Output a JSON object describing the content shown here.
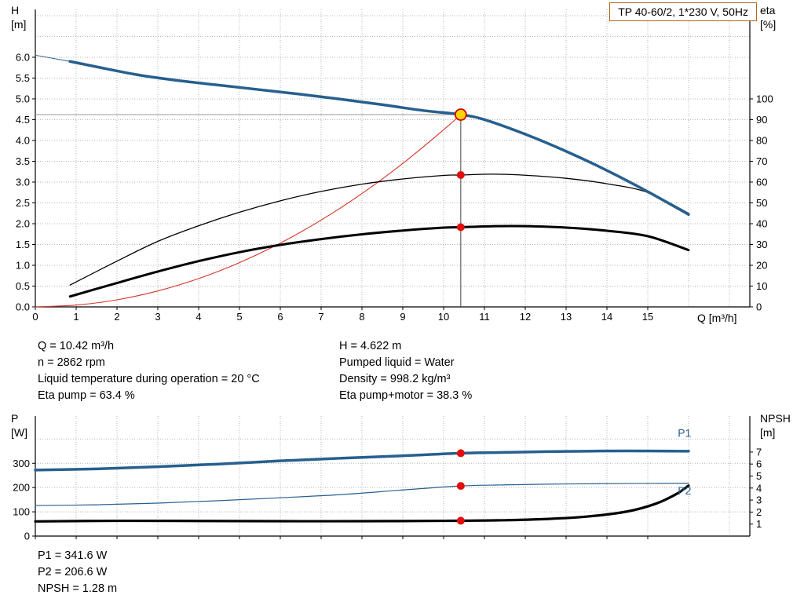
{
  "title_box": {
    "label": "TP 40-60/2, 1*230 V, 50Hz"
  },
  "colors": {
    "grid": "#b5b5b5",
    "axis": "#000000",
    "curve_blue": "#275f8f",
    "curve_black": "#000000",
    "system_red": "#d53328",
    "dot_red": "#e40d0d",
    "op_fill": "#ffd400",
    "op_stroke": "#d50000",
    "title_border": "#b4641e"
  },
  "info_block": {
    "left": [
      "Q = 10.42 m³/h",
      "n = 2862 rpm",
      "Liquid temperature during operation = 20 °C",
      "Eta pump = 63.4 %"
    ],
    "right": [
      "H = 4.622 m",
      "Pumped liquid = Water",
      "Density = 998.2 kg/m³",
      "Eta pump+motor = 38.3 %"
    ]
  },
  "result_block": {
    "p1": "P1 = 341.6 W",
    "p2": "P2 = 206.6 W",
    "npsh": "NPSH = 1.28 m"
  },
  "chart_data": [
    {
      "type": "line",
      "title": "TP 40-60/2, 1*230 V, 50Hz",
      "x_axis": {
        "label": "Q [m³/h]",
        "min": 0,
        "max": 17.5,
        "grid_step": 1,
        "show_labels": true,
        "ticks": [
          0,
          1,
          2,
          3,
          4,
          5,
          6,
          7,
          8,
          9,
          10,
          11,
          12,
          13,
          14,
          15
        ]
      },
      "y_left": {
        "name": "H",
        "unit": "[m]",
        "min": 0,
        "max": 7.15,
        "grid_step": 0.5,
        "decimals": 1,
        "ticks": [
          0,
          0.5,
          1,
          1.5,
          2,
          2.5,
          3,
          3.5,
          4,
          4.5,
          5,
          5.5,
          6
        ]
      },
      "y_right": {
        "name": "eta",
        "unit": "[%]",
        "min": 0,
        "max": 143,
        "ticks": [
          0,
          10,
          20,
          30,
          40,
          50,
          60,
          70,
          80,
          90,
          100
        ]
      },
      "series": [
        {
          "name": "pump-curve-lead",
          "axis": "left",
          "color": "#275f8f",
          "width": 1,
          "points": [
            [
              0,
              6.05
            ],
            [
              0.85,
              5.9
            ]
          ]
        },
        {
          "name": "system-curve",
          "axis": "left",
          "color": "#d53328",
          "width": 1.1,
          "points": [
            [
              0,
              0
            ],
            [
              1,
              0.043
            ],
            [
              2,
              0.17
            ],
            [
              3,
              0.383
            ],
            [
              4,
              0.681
            ],
            [
              5,
              1.064
            ],
            [
              6,
              1.532
            ],
            [
              7,
              2.086
            ],
            [
              8,
              2.724
            ],
            [
              9,
              3.448
            ],
            [
              10,
              4.257
            ],
            [
              10.42,
              4.622
            ]
          ]
        },
        {
          "name": "eta-pump-curve",
          "axis": "right",
          "color": "#000000",
          "width": 1.3,
          "points": [
            [
              0.85,
              10.5
            ],
            [
              2,
              22
            ],
            [
              3,
              31.5
            ],
            [
              4,
              39
            ],
            [
              5,
              45.5
            ],
            [
              6,
              51
            ],
            [
              7,
              55.5
            ],
            [
              8,
              59
            ],
            [
              9,
              61.5
            ],
            [
              10,
              63.2
            ],
            [
              10.42,
              63.4
            ],
            [
              11.2,
              63.8
            ],
            [
              12,
              63.3
            ],
            [
              13,
              61.8
            ],
            [
              14,
              59.2
            ],
            [
              15,
              55
            ],
            [
              16,
              45
            ]
          ]
        },
        {
          "name": "eta-pump-motor-curve",
          "axis": "right",
          "color": "#000000",
          "width": 3,
          "points": [
            [
              0.85,
              5
            ],
            [
              2,
              11.5
            ],
            [
              3,
              17
            ],
            [
              4,
              22
            ],
            [
              5,
              26.3
            ],
            [
              6,
              29.8
            ],
            [
              7,
              32.6
            ],
            [
              8,
              34.9
            ],
            [
              9,
              36.7
            ],
            [
              10,
              38.1
            ],
            [
              10.42,
              38.3
            ],
            [
              11.3,
              38.8
            ],
            [
              12,
              38.8
            ],
            [
              13,
              38.1
            ],
            [
              14,
              36.6
            ],
            [
              15,
              34
            ],
            [
              16,
              27.3
            ]
          ]
        },
        {
          "name": "pump-curve",
          "axis": "left",
          "color": "#275f8f",
          "width": 3.5,
          "points": [
            [
              0.85,
              5.9
            ],
            [
              1.5,
              5.77
            ],
            [
              2.5,
              5.58
            ],
            [
              3.5,
              5.44
            ],
            [
              4.5,
              5.33
            ],
            [
              5.5,
              5.22
            ],
            [
              6.5,
              5.11
            ],
            [
              7.5,
              4.99
            ],
            [
              8.5,
              4.86
            ],
            [
              9.5,
              4.72
            ],
            [
              10.42,
              4.622
            ],
            [
              11,
              4.5
            ],
            [
              12,
              4.15
            ],
            [
              13,
              3.74
            ],
            [
              14,
              3.28
            ],
            [
              15,
              2.77
            ],
            [
              16,
              2.22
            ]
          ]
        }
      ],
      "guides": {
        "x": 10.42,
        "y": 4.622,
        "axis": "left"
      },
      "markers": [
        {
          "type": "dot",
          "x": 10.42,
          "y": 63.4,
          "axis": "right"
        },
        {
          "type": "dot",
          "x": 10.42,
          "y": 38.3,
          "axis": "right"
        },
        {
          "type": "op",
          "x": 10.42,
          "y": 4.622,
          "axis": "left"
        }
      ],
      "operating_point": {
        "Q_m3h": 10.42,
        "H_m": 4.622,
        "eta_pump_pct": 63.4,
        "eta_pump_motor_pct": 38.3,
        "n_rpm": 2862
      }
    },
    {
      "type": "line",
      "x_axis": {
        "label": "",
        "min": 0,
        "max": 17.5,
        "grid_step": 1,
        "show_labels": false,
        "ticks": [
          0,
          1,
          2,
          3,
          4,
          5,
          6,
          7,
          8,
          9,
          10,
          11,
          12,
          13,
          14,
          15
        ]
      },
      "y_left": {
        "name": "P",
        "unit": "[W]",
        "min": 0,
        "max": 495,
        "grid_step": 100,
        "ticks": [
          0,
          100,
          200,
          300
        ]
      },
      "y_right": {
        "name": "NPSH",
        "unit": "[m]",
        "min": 0,
        "max": 10,
        "ticks": [
          1,
          2,
          3,
          4,
          5,
          6,
          7
        ]
      },
      "series": [
        {
          "name": "p1-curve",
          "axis": "left",
          "color": "#275f8f",
          "width": 3.5,
          "points": [
            [
              0,
              272
            ],
            [
              1.5,
              277
            ],
            [
              3,
              286
            ],
            [
              4.5,
              297
            ],
            [
              6,
              310
            ],
            [
              7.5,
              321
            ],
            [
              9,
              331
            ],
            [
              10.42,
              341.6
            ],
            [
              11.5,
              345
            ],
            [
              12.5,
              348
            ],
            [
              13.5,
              350
            ],
            [
              14.5,
              351
            ],
            [
              16,
              350
            ]
          ]
        },
        {
          "name": "p2-curve",
          "axis": "left",
          "color": "#275f8f",
          "width": 1.2,
          "points": [
            [
              0,
              126
            ],
            [
              1.5,
              129
            ],
            [
              3,
              136
            ],
            [
              4.5,
              146
            ],
            [
              6,
              158
            ],
            [
              7.5,
              171
            ],
            [
              9,
              190
            ],
            [
              10.42,
              206.6
            ],
            [
              11.5,
              211
            ],
            [
              13,
              215
            ],
            [
              14.5,
              217
            ],
            [
              16,
              218
            ]
          ]
        },
        {
          "name": "npsh-curve",
          "axis": "right",
          "color": "#000000",
          "width": 3.2,
          "points": [
            [
              0,
              1.22
            ],
            [
              2,
              1.27
            ],
            [
              4,
              1.26
            ],
            [
              6,
              1.24
            ],
            [
              8,
              1.24
            ],
            [
              10,
              1.27
            ],
            [
              10.42,
              1.28
            ],
            [
              11.5,
              1.32
            ],
            [
              12.5,
              1.42
            ],
            [
              13.5,
              1.62
            ],
            [
              14.5,
              2.05
            ],
            [
              15.2,
              2.7
            ],
            [
              15.7,
              3.5
            ],
            [
              16,
              4.2
            ]
          ]
        }
      ],
      "markers": [
        {
          "type": "dot",
          "x": 10.42,
          "y": 341.6,
          "axis": "left"
        },
        {
          "type": "dot",
          "x": 10.42,
          "y": 206.6,
          "axis": "left"
        },
        {
          "type": "dot",
          "x": 10.42,
          "y": 1.28,
          "axis": "right"
        }
      ],
      "annotations": [
        {
          "text": "P1",
          "x": 15.9,
          "y": 410,
          "axis": "left",
          "color": "#275f8f"
        },
        {
          "text": "P2",
          "x": 15.9,
          "y": 172,
          "axis": "left",
          "color": "#275f8f"
        }
      ],
      "operating_point": {
        "P1_W": 341.6,
        "P2_W": 206.6,
        "NPSH_m": 1.28
      }
    }
  ]
}
